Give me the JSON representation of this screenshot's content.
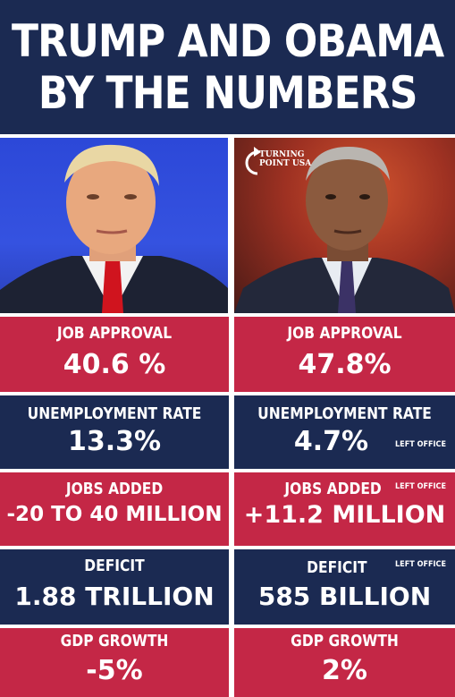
{
  "header": {
    "line1": "TRUMP AND OBAMA",
    "line2": "BY THE NUMBERS"
  },
  "logo": {
    "line1": "TURNING",
    "line2": "POINT USA"
  },
  "colors": {
    "navy": "#1b2a52",
    "red": "#c42746"
  },
  "rows": [
    {
      "trump": {
        "label": "JOB APPROVAL",
        "value": "40.6 %"
      },
      "obama": {
        "label": "JOB APPROVAL",
        "value": "47.8%"
      }
    },
    {
      "trump": {
        "label": "UNEMPLOYMENT RATE",
        "value": "13.3%"
      },
      "obama": {
        "label": "UNEMPLOYMENT RATE",
        "value": "4.7%",
        "note": "LEFT OFFICE"
      }
    },
    {
      "trump": {
        "label": "JOBS ADDED",
        "value": "-20 TO 40 MILLION"
      },
      "obama": {
        "label": "JOBS ADDED",
        "value": "+11.2 MILLION",
        "note": "LEFT OFFICE"
      }
    },
    {
      "trump": {
        "label": "DEFICIT",
        "value": "1.88 TRILLION"
      },
      "obama": {
        "label": "DEFICIT",
        "value": "585 BILLION",
        "note": "LEFT OFFICE"
      }
    },
    {
      "trump": {
        "label": "GDP GROWTH",
        "value": "-5%"
      },
      "obama": {
        "label": "GDP GROWTH",
        "value": "2%"
      }
    }
  ]
}
